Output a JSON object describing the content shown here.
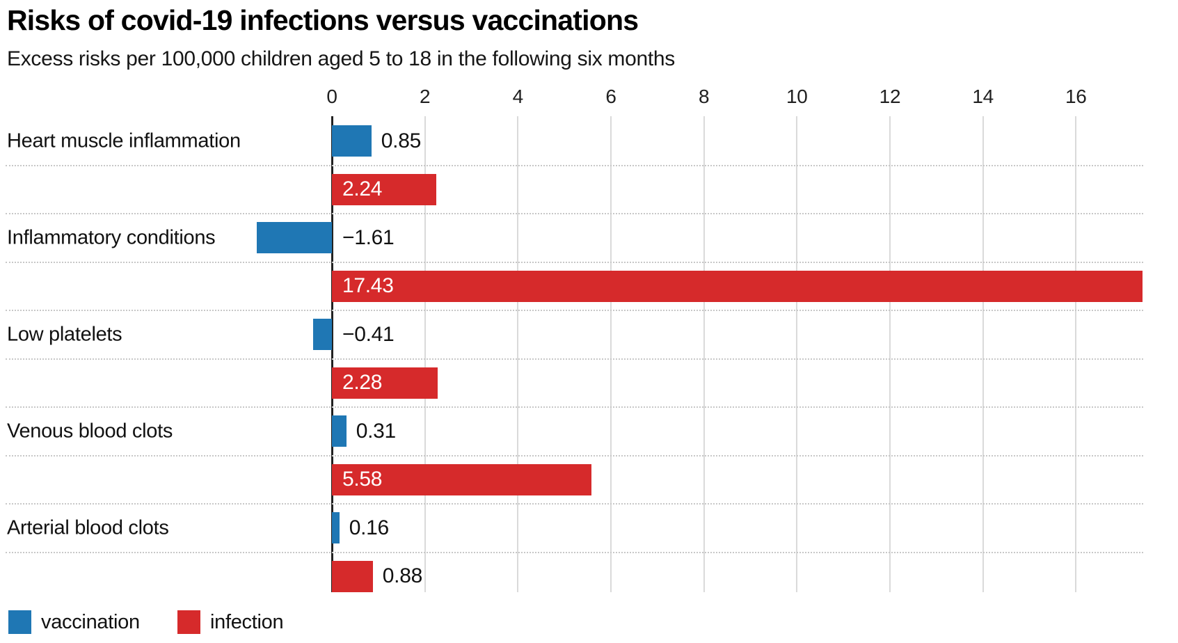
{
  "chart_data": {
    "type": "bar",
    "orientation": "horizontal",
    "title": "Risks of covid-19 infections versus vaccinations",
    "subtitle": "Excess risks per 100,000 children aged 5 to 18 in the following six months",
    "categories": [
      "Heart muscle inflammation",
      "Inflammatory conditions",
      "Low platelets",
      "Venous blood clots",
      "Arterial blood clots"
    ],
    "series": [
      {
        "name": "vaccination",
        "color": "#1f77b4",
        "values": [
          0.85,
          -1.61,
          -0.41,
          0.31,
          0.16
        ],
        "labels": [
          "0.85",
          "−1.61",
          "−0.41",
          "0.31",
          "0.16"
        ]
      },
      {
        "name": "infection",
        "color": "#d62a2b",
        "values": [
          2.24,
          17.43,
          2.28,
          5.58,
          0.88
        ],
        "labels": [
          "2.24",
          "17.43",
          "2.28",
          "5.58",
          "0.88"
        ]
      }
    ],
    "xticks": [
      0,
      2,
      4,
      6,
      8,
      10,
      12,
      14,
      16
    ],
    "xlim": [
      -1.61,
      17.43
    ],
    "xlabel": "",
    "ylabel": "",
    "grid": {
      "vertical_gridlines": "solid",
      "row_separators": "dotted"
    },
    "value_label_colors": {
      "inside_bar": "#ffffff",
      "outside_bar": "#111111"
    },
    "legend_position": "bottom-left",
    "legend": [
      "vaccination",
      "infection"
    ]
  }
}
